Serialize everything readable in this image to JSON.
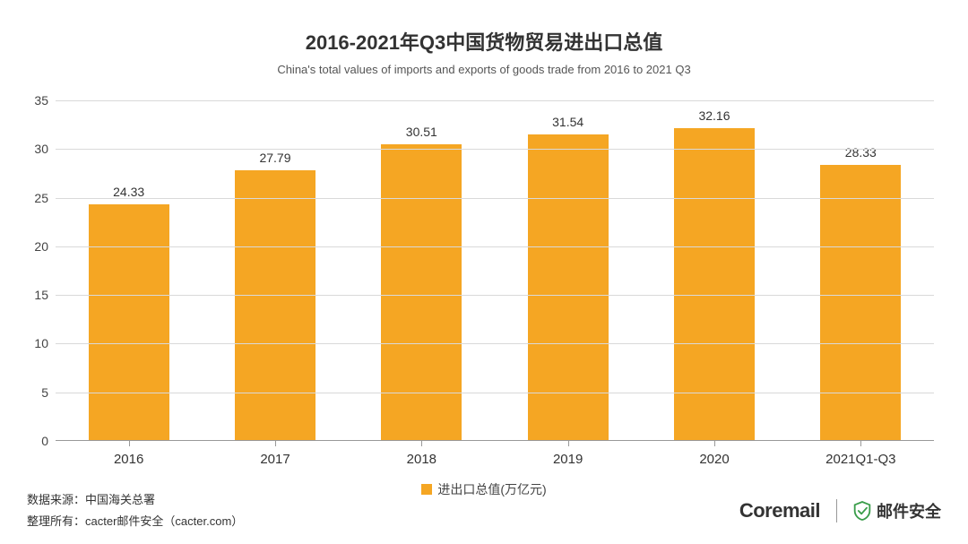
{
  "title": "2016-2021年Q3中国货物贸易进出口总值",
  "subtitle": "China's total values of imports and exports of goods trade  from 2016 to 2021 Q3",
  "chart": {
    "type": "bar",
    "categories": [
      "2016",
      "2017",
      "2018",
      "2019",
      "2020",
      "2021Q1-Q3"
    ],
    "values": [
      24.33,
      27.79,
      30.51,
      31.54,
      32.16,
      28.33
    ],
    "value_labels": [
      "24.33",
      "27.79",
      "30.51",
      "31.54",
      "32.16",
      "28.33"
    ],
    "bar_color": "#f5a623",
    "ylim": [
      0,
      35
    ],
    "ytick_step": 5,
    "yticks": [
      0,
      5,
      10,
      15,
      20,
      25,
      30,
      35
    ],
    "grid_color": "#d9d9d9",
    "axis_color": "#999999",
    "background_color": "#ffffff",
    "bar_width_ratio": 0.55,
    "label_fontsize": 14,
    "title_fontsize": 22,
    "subtitle_fontsize": 13,
    "xlabel_fontsize": 15
  },
  "legend": {
    "label": "进出口总值(万亿元)",
    "swatch_color": "#f5a623"
  },
  "footer": {
    "source_label": "数据来源：",
    "source_value": "中国海关总署",
    "compiler_label": "整理所有：",
    "compiler_value": "cacter邮件安全（cacter.com）"
  },
  "brand1": "Coremail",
  "brand2": "邮件安全",
  "shield_color": "#3a9d4a"
}
